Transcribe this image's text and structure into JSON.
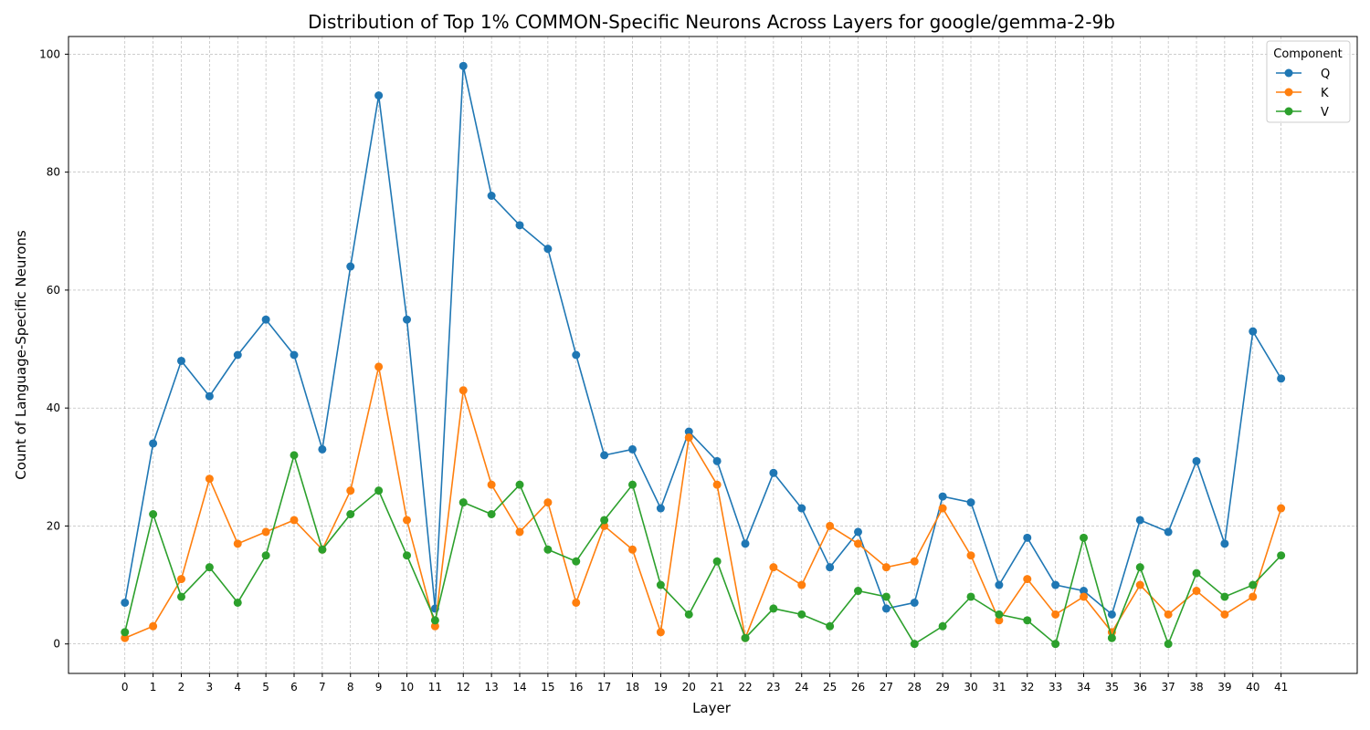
{
  "chart_data": {
    "type": "line",
    "title": "Distribution of Top 1% COMMON-Specific Neurons Across Layers for google/gemma-2-9b",
    "xlabel": "Layer",
    "ylabel": "Count of Language-Specific Neurons",
    "x": [
      0,
      1,
      2,
      3,
      4,
      5,
      6,
      7,
      8,
      9,
      10,
      11,
      12,
      13,
      14,
      15,
      16,
      17,
      18,
      19,
      20,
      21,
      22,
      23,
      24,
      25,
      26,
      27,
      28,
      29,
      30,
      31,
      32,
      33,
      34,
      35,
      36,
      37,
      38,
      39,
      40,
      41
    ],
    "xlim": [
      -2,
      43.7
    ],
    "ylim": [
      -5,
      103
    ],
    "yticks": [
      0,
      20,
      40,
      60,
      80,
      100
    ],
    "grid": true,
    "legend": {
      "title": "Component",
      "placement": "top-right"
    },
    "series": [
      {
        "name": "Q",
        "color": "#1f77b4",
        "values": [
          7,
          34,
          48,
          42,
          49,
          55,
          49,
          33,
          64,
          93,
          55,
          6,
          98,
          76,
          71,
          67,
          49,
          32,
          33,
          23,
          36,
          31,
          17,
          29,
          23,
          13,
          19,
          6,
          7,
          25,
          24,
          10,
          18,
          10,
          9,
          5,
          21,
          19,
          31,
          17,
          53,
          45
        ]
      },
      {
        "name": "K",
        "color": "#ff7f0e",
        "values": [
          1,
          3,
          11,
          28,
          17,
          19,
          21,
          16,
          26,
          47,
          21,
          3,
          43,
          27,
          19,
          24,
          7,
          20,
          16,
          2,
          35,
          27,
          1,
          13,
          10,
          20,
          17,
          13,
          14,
          23,
          15,
          4,
          11,
          5,
          8,
          2,
          10,
          5,
          9,
          5,
          8,
          23
        ]
      },
      {
        "name": "V",
        "color": "#2ca02c",
        "values": [
          2,
          22,
          8,
          13,
          7,
          15,
          32,
          16,
          22,
          26,
          15,
          4,
          24,
          22,
          27,
          16,
          14,
          21,
          27,
          10,
          5,
          14,
          1,
          6,
          5,
          3,
          9,
          8,
          0,
          3,
          8,
          5,
          4,
          0,
          18,
          1,
          13,
          0,
          12,
          8,
          10,
          15
        ]
      }
    ]
  }
}
